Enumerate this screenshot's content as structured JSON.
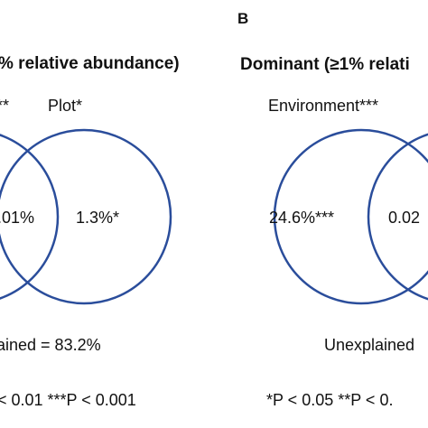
{
  "style": {
    "circle_color": "#2a4d9b",
    "text_color": "#111111"
  },
  "panel_a": {
    "title": "% relative abundance)",
    "factor_left": "**",
    "factor_right": "Plot*",
    "shared_value": ".01%",
    "right_value": "1.3%*",
    "unexplained": "ained = 83.2%",
    "significance": "< 0.01  ***P < 0.001"
  },
  "panel_b": {
    "letter": "B",
    "title": "Dominant (≥1% relati",
    "factor_left": "Environment***",
    "left_value": "24.6%***",
    "shared_value": "0.02",
    "unexplained": "Unexplained",
    "significance": "*P < 0.05  **P < 0."
  }
}
